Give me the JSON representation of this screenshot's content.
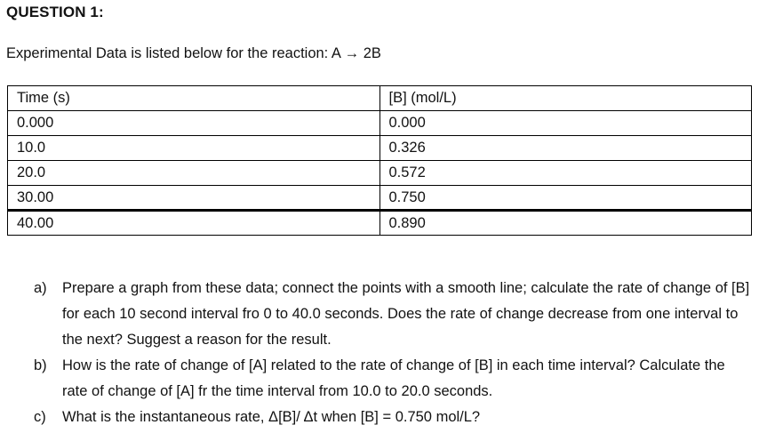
{
  "page": {
    "heading": "QUESTION 1:",
    "intro": "Experimental Data is listed below for the reaction: A → 2B"
  },
  "table": {
    "headers": [
      "Time (s)",
      "[B] (mol/L)"
    ],
    "rows": [
      [
        "0.000",
        "0.000"
      ],
      [
        "10.0",
        "0.326"
      ],
      [
        "20.0",
        "0.572"
      ],
      [
        "30.00",
        "0.750"
      ],
      [
        "40.00",
        "0.890"
      ]
    ]
  },
  "questions": [
    {
      "label": "a)",
      "text": "Prepare a graph from these data; connect the points with a smooth line; calculate the rate of change of [B] for each 10 second interval fro 0 to 40.0 seconds. Does the rate of change decrease from one interval to the next? Suggest a reason for the result."
    },
    {
      "label": "b)",
      "text": "How is the rate of change of [A] related to the rate of change of [B] in each time interval? Calculate the rate of change of [A] fr the time interval from 10.0 to 20.0 seconds."
    },
    {
      "label": "c)",
      "text": "What is the instantaneous rate, Δ[B]/ Δt when [B] = 0.750 mol/L?"
    }
  ]
}
